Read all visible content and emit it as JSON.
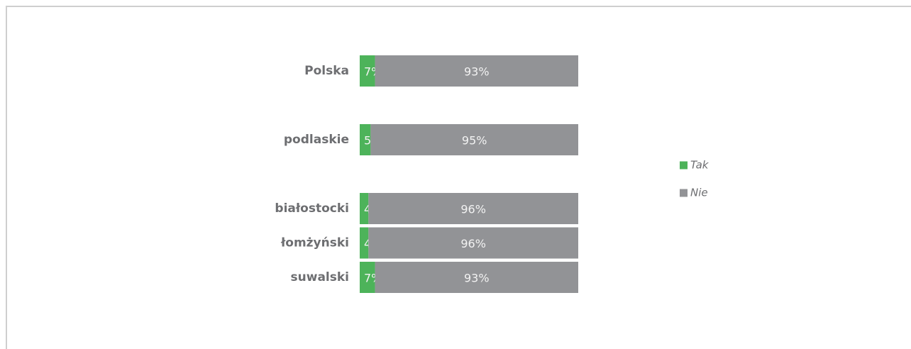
{
  "chart_data": {
    "type": "stacked-bar-horizontal",
    "categories": [
      "Polska",
      null,
      "podlaskie",
      null,
      "białostocki",
      "łomżyński",
      "suwalski"
    ],
    "series": [
      {
        "name": "Tak",
        "color": "#4db35a",
        "values": [
          7,
          null,
          5,
          null,
          4,
          4,
          7
        ],
        "value_labels": [
          "7%",
          null,
          "5%",
          null,
          "4%",
          "4%",
          "7%"
        ]
      },
      {
        "name": "Nie",
        "color": "#929396",
        "values": [
          93,
          null,
          95,
          null,
          96,
          96,
          93
        ],
        "value_labels": [
          "93%",
          null,
          "95%",
          null,
          "96%",
          "96%",
          "93%"
        ]
      }
    ],
    "xlim": [
      0,
      100
    ],
    "legend": "right"
  }
}
